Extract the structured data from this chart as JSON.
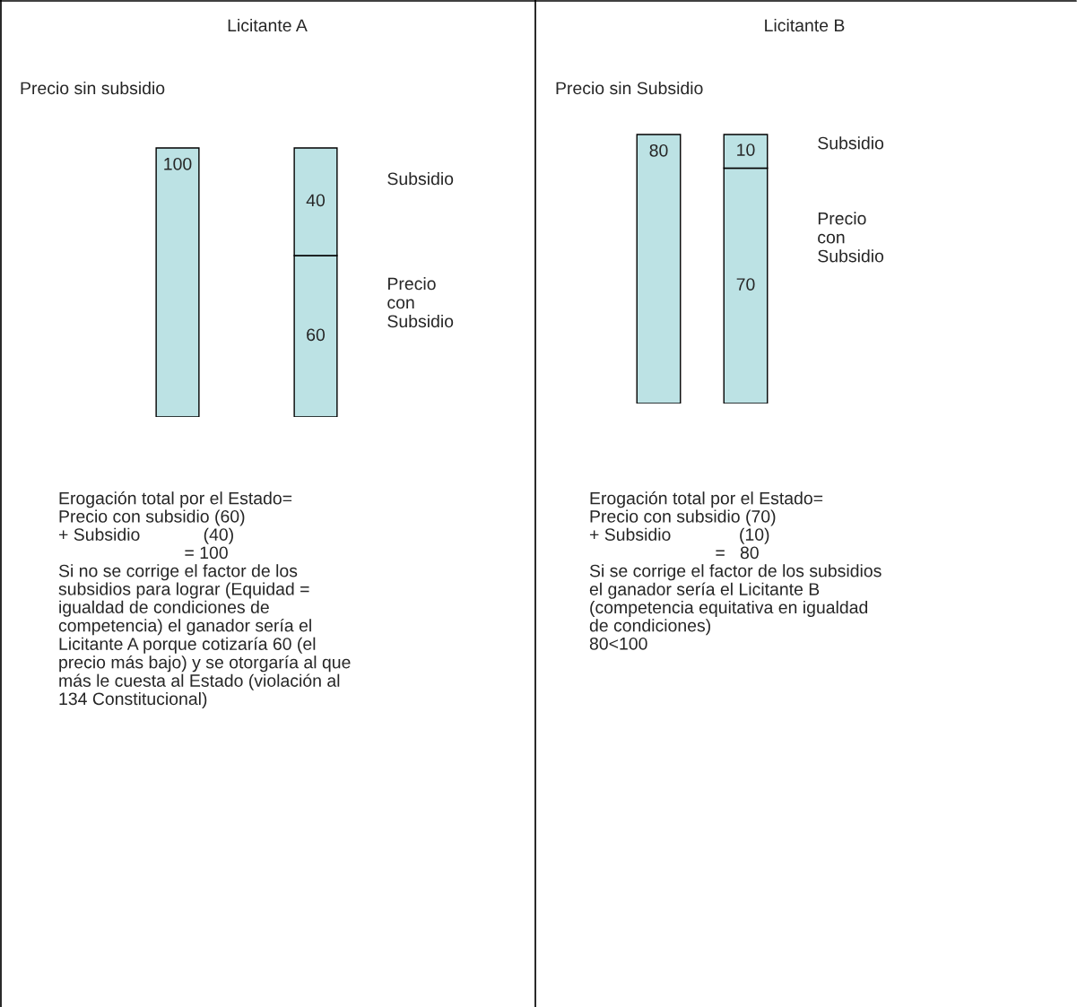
{
  "chart_data": [
    {
      "type": "bar",
      "title": "Licitante A",
      "subtitle": "Precio sin subsidio",
      "categories": [
        null,
        null
      ],
      "stacked": true,
      "tick_labels": false,
      "data_labels": true,
      "legend": false,
      "series": [
        {
          "color": "#bce2e4",
          "values": [
            100,
            null
          ]
        },
        {
          "name": "Precio con Subsidio",
          "color": "#bce2e4",
          "values": [
            null,
            60
          ]
        },
        {
          "name": "Subsidio",
          "color": "#bce2e4",
          "values": [
            null,
            40
          ]
        }
      ],
      "annotations": [
        "Erogación total por el Estado=\nPrecio con subsidio (60)\n+ Subsidio             (40)\n                          = 100\nSi no se corrige el factor de los\nsubsidios para lograr (Equidad =\nigualdad de condiciones de\ncompetencia) el ganador sería el\nLicitante A porque cotizaría 60 (el\nprecio más bajo) y se otorgaría al que\nmás le cuesta al Estado (violación al\n134 Constitucional)"
      ]
    },
    {
      "type": "bar",
      "title": "Licitante B",
      "subtitle": "Precio sin Subsidio",
      "categories": [
        null,
        null
      ],
      "stacked": true,
      "tick_labels": false,
      "data_labels": true,
      "legend": false,
      "series": [
        {
          "color": "#bce2e4",
          "values": [
            80,
            null
          ]
        },
        {
          "name": "Precio con Subsidio",
          "color": "#bce2e4",
          "values": [
            null,
            70
          ]
        },
        {
          "name": "Subsidio",
          "color": "#bce2e4",
          "values": [
            null,
            10
          ]
        }
      ],
      "annotations": [
        "Erogación total por el Estado=\nPrecio con subsidio (70)\n+ Subsidio              (10)\n                          =   80\nSi se corrige el factor de los subsidios\nel ganador sería el Licitante B\n(competencia equitativa en igualdad\nde condiciones)\n80<100"
      ]
    }
  ]
}
